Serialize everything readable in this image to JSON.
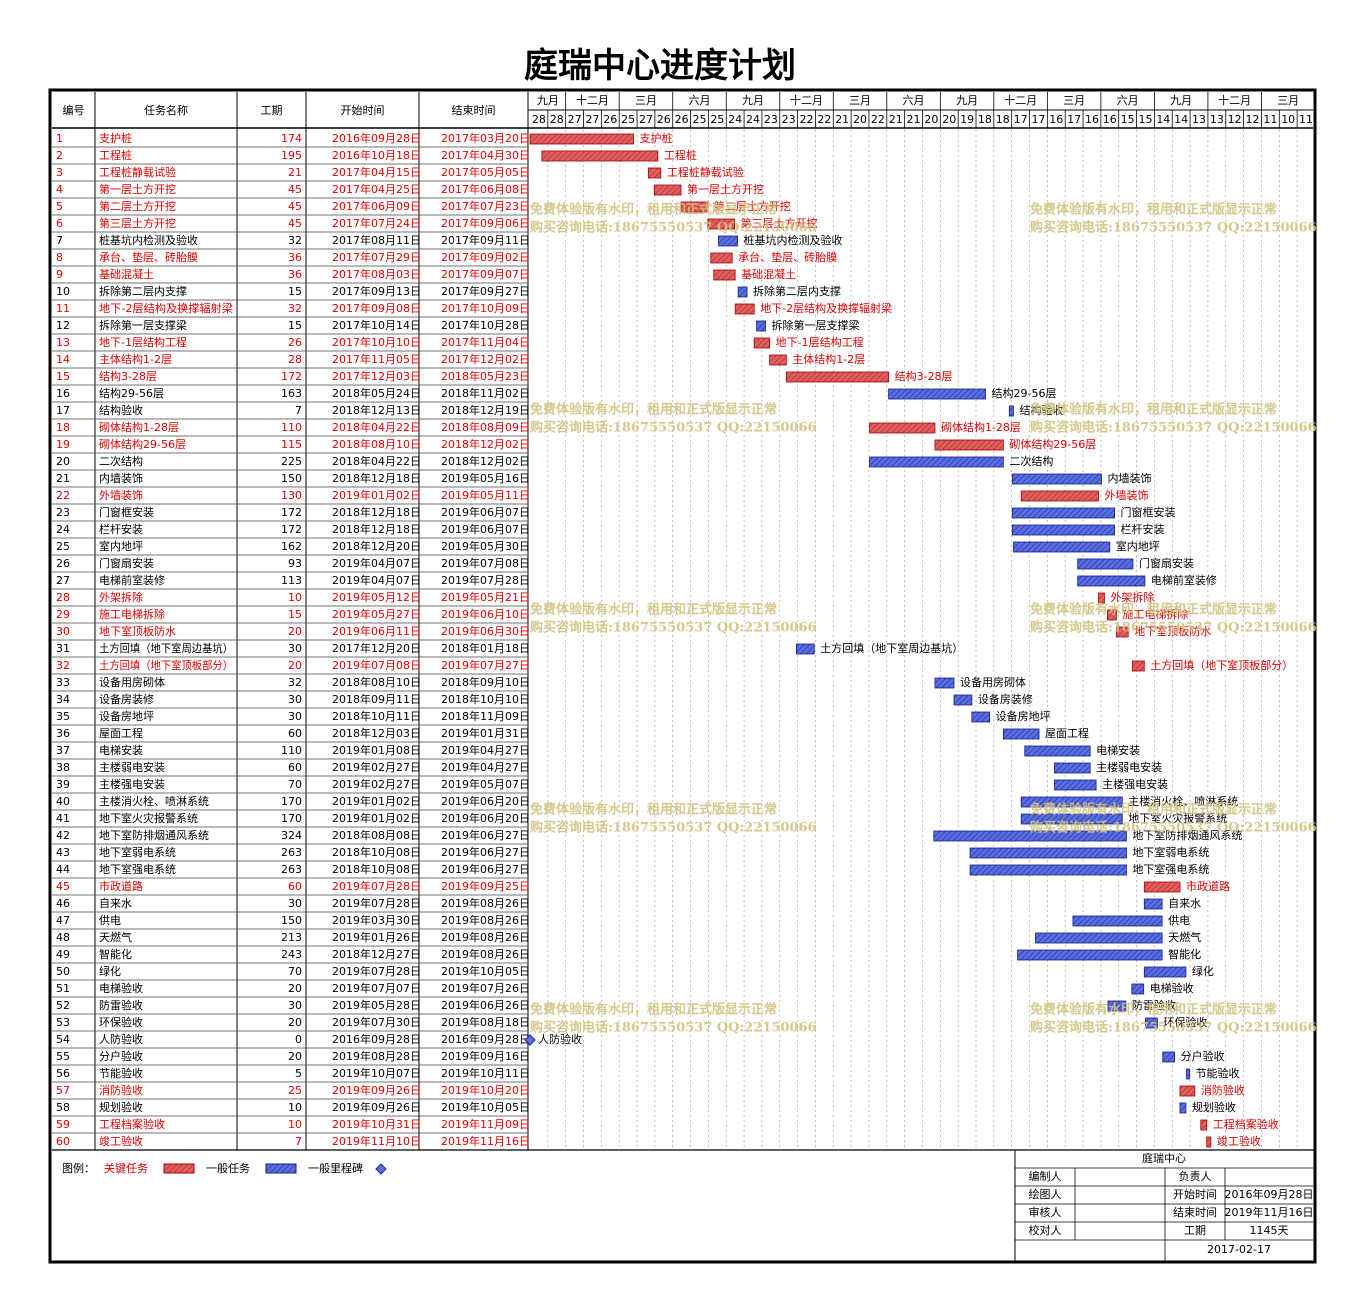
{
  "title": "庭瑞中心进度计划",
  "header": {
    "id": "编号",
    "name": "任务名称",
    "duration": "工期",
    "start": "开始时间",
    "end": "结束时间"
  },
  "timeline": {
    "months": [
      "九月",
      "十二月",
      "三月",
      "六月",
      "九月",
      "十二月",
      "三月",
      "六月",
      "九月",
      "十二月",
      "三月",
      "六月",
      "九月",
      "十二月",
      "三月"
    ],
    "days": [
      "28",
      "28",
      "27",
      "27",
      "26",
      "25",
      "27",
      "26",
      "26",
      "25",
      "25",
      "24",
      "24",
      "23",
      "23",
      "22",
      "22",
      "21",
      "20",
      "22",
      "21",
      "21",
      "20",
      "20",
      "19",
      "18",
      "18",
      "17",
      "17",
      "16",
      "17",
      "16",
      "16",
      "15",
      "15",
      "14",
      "14",
      "13",
      "13",
      "12",
      "12",
      "11",
      "10",
      "11"
    ]
  },
  "tasks": [
    {
      "id": 1,
      "name": "支护桩",
      "duration": 174,
      "start": "2016年09月28日",
      "end": "2017年03月20日",
      "critical": true
    },
    {
      "id": 2,
      "name": "工程桩",
      "duration": 195,
      "start": "2016年10月18日",
      "end": "2017年04月30日",
      "critical": true
    },
    {
      "id": 3,
      "name": "工程桩静载试验",
      "duration": 21,
      "start": "2017年04月15日",
      "end": "2017年05月05日",
      "critical": true
    },
    {
      "id": 4,
      "name": "第一层土方开挖",
      "duration": 45,
      "start": "2017年04月25日",
      "end": "2017年06月08日",
      "critical": true
    },
    {
      "id": 5,
      "name": "第二层土方开挖",
      "duration": 45,
      "start": "2017年06月09日",
      "end": "2017年07月23日",
      "critical": true
    },
    {
      "id": 6,
      "name": "第三层土方开挖",
      "duration": 45,
      "start": "2017年07月24日",
      "end": "2017年09月06日",
      "critical": true
    },
    {
      "id": 7,
      "name": "桩基坑内检测及验收",
      "duration": 32,
      "start": "2017年08月11日",
      "end": "2017年09月11日",
      "critical": false
    },
    {
      "id": 8,
      "name": "承台、垫层、砖胎膜",
      "duration": 36,
      "start": "2017年07月29日",
      "end": "2017年09月02日",
      "critical": true
    },
    {
      "id": 9,
      "name": "基础混凝土",
      "duration": 36,
      "start": "2017年08月03日",
      "end": "2017年09月07日",
      "critical": true
    },
    {
      "id": 10,
      "name": "拆除第二层内支撑",
      "duration": 15,
      "start": "2017年09月13日",
      "end": "2017年09月27日",
      "critical": false
    },
    {
      "id": 11,
      "name": "地下-2层结构及换撑辐射梁",
      "duration": 32,
      "start": "2017年09月08日",
      "end": "2017年10月09日",
      "critical": true
    },
    {
      "id": 12,
      "name": "拆除第一层支撑梁",
      "duration": 15,
      "start": "2017年10月14日",
      "end": "2017年10月28日",
      "critical": false
    },
    {
      "id": 13,
      "name": "地下-1层结构工程",
      "duration": 26,
      "start": "2017年10月10日",
      "end": "2017年11月04日",
      "critical": true
    },
    {
      "id": 14,
      "name": "主体结构1-2层",
      "duration": 28,
      "start": "2017年11月05日",
      "end": "2017年12月02日",
      "critical": true
    },
    {
      "id": 15,
      "name": "结构3-28层",
      "duration": 172,
      "start": "2017年12月03日",
      "end": "2018年05月23日",
      "critical": true
    },
    {
      "id": 16,
      "name": "结构29-56层",
      "duration": 163,
      "start": "2018年05月24日",
      "end": "2018年11月02日",
      "critical": false
    },
    {
      "id": 17,
      "name": "结构验收",
      "duration": 7,
      "start": "2018年12月13日",
      "end": "2018年12月19日",
      "critical": false
    },
    {
      "id": 18,
      "name": "砌体结构1-28层",
      "duration": 110,
      "start": "2018年04月22日",
      "end": "2018年08月09日",
      "critical": true
    },
    {
      "id": 19,
      "name": "砌体结构29-56层",
      "duration": 115,
      "start": "2018年08月10日",
      "end": "2018年12月02日",
      "critical": true
    },
    {
      "id": 20,
      "name": "二次结构",
      "duration": 225,
      "start": "2018年04月22日",
      "end": "2018年12月02日",
      "critical": false
    },
    {
      "id": 21,
      "name": "内墙装饰",
      "duration": 150,
      "start": "2018年12月18日",
      "end": "2019年05月16日",
      "critical": false
    },
    {
      "id": 22,
      "name": "外墙装饰",
      "duration": 130,
      "start": "2019年01月02日",
      "end": "2019年05月11日",
      "critical": true
    },
    {
      "id": 23,
      "name": "门窗框安装",
      "duration": 172,
      "start": "2018年12月18日",
      "end": "2019年06月07日",
      "critical": false
    },
    {
      "id": 24,
      "name": "栏杆安装",
      "duration": 172,
      "start": "2018年12月18日",
      "end": "2019年06月07日",
      "critical": false
    },
    {
      "id": 25,
      "name": "室内地坪",
      "duration": 162,
      "start": "2018年12月20日",
      "end": "2019年05月30日",
      "critical": false
    },
    {
      "id": 26,
      "name": "门窗扇安装",
      "duration": 93,
      "start": "2019年04月07日",
      "end": "2019年07月08日",
      "critical": false
    },
    {
      "id": 27,
      "name": "电梯前室装修",
      "duration": 113,
      "start": "2019年04月07日",
      "end": "2019年07月28日",
      "critical": false
    },
    {
      "id": 28,
      "name": "外架拆除",
      "duration": 10,
      "start": "2019年05月12日",
      "end": "2019年05月21日",
      "critical": true
    },
    {
      "id": 29,
      "name": "施工电梯拆除",
      "duration": 15,
      "start": "2019年05月27日",
      "end": "2019年06月10日",
      "critical": true
    },
    {
      "id": 30,
      "name": "地下室顶板防水",
      "duration": 20,
      "start": "2019年06月11日",
      "end": "2019年06月30日",
      "critical": true
    },
    {
      "id": 31,
      "name": "土方回填（地下室周边基坑）",
      "duration": 30,
      "start": "2017年12月20日",
      "end": "2018年01月18日",
      "critical": false
    },
    {
      "id": 32,
      "name": "土方回填（地下室顶板部分）",
      "duration": 20,
      "start": "2019年07月08日",
      "end": "2019年07月27日",
      "critical": true
    },
    {
      "id": 33,
      "name": "设备用房砌体",
      "duration": 32,
      "start": "2018年08月10日",
      "end": "2018年09月10日",
      "critical": false
    },
    {
      "id": 34,
      "name": "设备房装修",
      "duration": 30,
      "start": "2018年09月11日",
      "end": "2018年10月10日",
      "critical": false
    },
    {
      "id": 35,
      "name": "设备房地坪",
      "duration": 30,
      "start": "2018年10月11日",
      "end": "2018年11月09日",
      "critical": false
    },
    {
      "id": 36,
      "name": "屋面工程",
      "duration": 60,
      "start": "2018年12月03日",
      "end": "2019年01月31日",
      "critical": false
    },
    {
      "id": 37,
      "name": "电梯安装",
      "duration": 110,
      "start": "2019年01月08日",
      "end": "2019年04月27日",
      "critical": false
    },
    {
      "id": 38,
      "name": "主楼弱电安装",
      "duration": 60,
      "start": "2019年02月27日",
      "end": "2019年04月27日",
      "critical": false
    },
    {
      "id": 39,
      "name": "主楼强电安装",
      "duration": 70,
      "start": "2019年02月27日",
      "end": "2019年05月07日",
      "critical": false
    },
    {
      "id": 40,
      "name": "主楼消火栓、喷淋系统",
      "duration": 170,
      "start": "2019年01月02日",
      "end": "2019年06月20日",
      "critical": false
    },
    {
      "id": 41,
      "name": "地下室火灾报警系统",
      "duration": 170,
      "start": "2019年01月02日",
      "end": "2019年06月20日",
      "critical": false
    },
    {
      "id": 42,
      "name": "地下室防排烟通风系统",
      "duration": 324,
      "start": "2018年08月08日",
      "end": "2019年06月27日",
      "critical": false
    },
    {
      "id": 43,
      "name": "地下室弱电系统",
      "duration": 263,
      "start": "2018年10月08日",
      "end": "2019年06月27日",
      "critical": false
    },
    {
      "id": 44,
      "name": "地下室强电系统",
      "duration": 263,
      "start": "2018年10月08日",
      "end": "2019年06月27日",
      "critical": false
    },
    {
      "id": 45,
      "name": "市政道路",
      "duration": 60,
      "start": "2019年07月28日",
      "end": "2019年09月25日",
      "critical": true
    },
    {
      "id": 46,
      "name": "自来水",
      "duration": 30,
      "start": "2019年07月28日",
      "end": "2019年08月26日",
      "critical": false
    },
    {
      "id": 47,
      "name": "供电",
      "duration": 150,
      "start": "2019年03月30日",
      "end": "2019年08月26日",
      "critical": false
    },
    {
      "id": 48,
      "name": "天燃气",
      "duration": 213,
      "start": "2019年01月26日",
      "end": "2019年08月26日",
      "critical": false
    },
    {
      "id": 49,
      "name": "智能化",
      "duration": 243,
      "start": "2018年12月27日",
      "end": "2019年08月26日",
      "critical": false
    },
    {
      "id": 50,
      "name": "绿化",
      "duration": 70,
      "start": "2019年07月28日",
      "end": "2019年10月05日",
      "critical": false
    },
    {
      "id": 51,
      "name": "电梯验收",
      "duration": 20,
      "start": "2019年07月07日",
      "end": "2019年07月26日",
      "critical": false
    },
    {
      "id": 52,
      "name": "防雷验收",
      "duration": 30,
      "start": "2019年05月28日",
      "end": "2019年06月26日",
      "critical": false
    },
    {
      "id": 53,
      "name": "环保验收",
      "duration": 20,
      "start": "2019年07月30日",
      "end": "2019年08月18日",
      "critical": false
    },
    {
      "id": 54,
      "name": "人防验收",
      "duration": 0,
      "start": "2016年09月28日",
      "end": "2016年09月28日",
      "critical": false
    },
    {
      "id": 55,
      "name": "分户验收",
      "duration": 20,
      "start": "2019年08月28日",
      "end": "2019年09月16日",
      "critical": false
    },
    {
      "id": 56,
      "name": "节能验收",
      "duration": 5,
      "start": "2019年10月07日",
      "end": "2019年10月11日",
      "critical": false
    },
    {
      "id": 57,
      "name": "消防验收",
      "duration": 25,
      "start": "2019年09月26日",
      "end": "2019年10月20日",
      "critical": true
    },
    {
      "id": 58,
      "name": "规划验收",
      "duration": 10,
      "start": "2019年09月26日",
      "end": "2019年10月05日",
      "critical": false
    },
    {
      "id": 59,
      "name": "工程档案验收",
      "duration": 10,
      "start": "2019年10月31日",
      "end": "2019年11月09日",
      "critical": true
    },
    {
      "id": 60,
      "name": "竣工验收",
      "duration": 7,
      "start": "2019年11月10日",
      "end": "2019年11月16日",
      "critical": true
    }
  ],
  "legend": {
    "title": "图例：",
    "critical": "关键任务",
    "normal": "一般任务",
    "milestone": "一般里程碑"
  },
  "info": {
    "project": "庭瑞中心",
    "editor": "编制人",
    "owner": "负责人",
    "drawer": "绘图人",
    "start_label": "开始时间",
    "start": "2016年09月28日",
    "reviewer": "审核人",
    "end_label": "结束时间",
    "end": "2019年11月16日",
    "checker": "校对人",
    "duration_label": "工期",
    "duration": "1145天",
    "date": "2017-02-17"
  },
  "watermark": [
    "免费体验版有水印，租用和正式版显示正常",
    "购买咨询电话:18675550537 QQ:22150066"
  ]
}
